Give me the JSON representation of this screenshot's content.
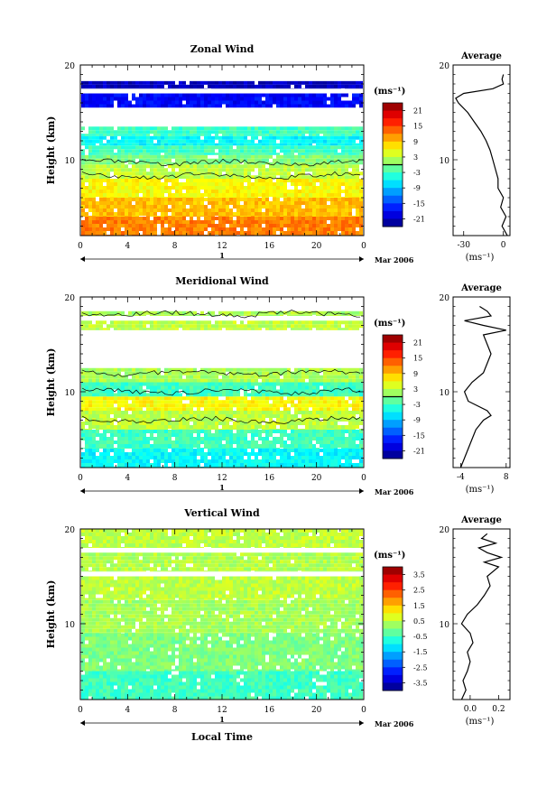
{
  "figure": {
    "xlabel": "Local Time",
    "date_label": "Mar 2006",
    "day_label": "1",
    "colorbar_unit": "(ms⁻¹)",
    "profile_title": "Average",
    "profile_unit": "(ms⁻¹)"
  },
  "chart_data": [
    {
      "type": "heatmap",
      "title": "Zonal Wind",
      "ylabel": "Height (km)",
      "xlabel": "Local Time",
      "x_ticks": [
        "0",
        "4",
        "8",
        "12",
        "16",
        "20",
        "0"
      ],
      "y_ticks": [
        "10",
        "20"
      ],
      "xlim": [
        0,
        24
      ],
      "ylim": [
        2,
        20
      ],
      "colorbar": {
        "ticks": [
          "21",
          "15",
          "9",
          "3",
          "-3",
          "-9",
          "-15",
          "-21"
        ],
        "range": [
          -24,
          24
        ]
      },
      "bands": [
        {
          "y0": 2.0,
          "y1": 4.0,
          "value": 12
        },
        {
          "y0": 4.0,
          "y1": 6.0,
          "value": 9
        },
        {
          "y0": 6.0,
          "y1": 8.0,
          "value": 6
        },
        {
          "y0": 8.0,
          "y1": 9.5,
          "value": 3
        },
        {
          "y0": 9.5,
          "y1": 10.5,
          "value": 0
        },
        {
          "y0": 10.5,
          "y1": 11.5,
          "value": -3
        },
        {
          "y0": 11.5,
          "y1": 12.5,
          "value": -6
        },
        {
          "y0": 12.5,
          "y1": 13.5,
          "value": -3
        },
        {
          "y0": 15.5,
          "y1": 17.0,
          "value": -18
        },
        {
          "y0": 17.5,
          "y1": 18.3,
          "value": -21
        }
      ],
      "profile": {
        "xticks": [
          "-30",
          "0"
        ],
        "xlim": [
          -38,
          5
        ],
        "height": [
          2,
          3,
          4,
          5,
          6,
          7,
          8,
          9,
          10,
          11,
          12,
          13,
          14,
          15,
          16,
          16.5,
          17,
          17.5,
          18,
          18.5,
          19
        ],
        "value": [
          3,
          -1,
          2,
          -2,
          0,
          -4,
          -4,
          -6,
          -8,
          -10,
          -13,
          -17,
          -22,
          -27,
          -34,
          -36,
          -30,
          -8,
          0,
          -1,
          0
        ]
      }
    },
    {
      "type": "heatmap",
      "title": "Meridional Wind",
      "ylabel": "Height (km)",
      "xlabel": "Local Time",
      "x_ticks": [
        "0",
        "4",
        "8",
        "12",
        "16",
        "20",
        "0"
      ],
      "y_ticks": [
        "10",
        "20"
      ],
      "xlim": [
        0,
        24
      ],
      "ylim": [
        2,
        20
      ],
      "colorbar": {
        "ticks": [
          "21",
          "15",
          "9",
          "3",
          "-3",
          "-9",
          "-15",
          "-21"
        ],
        "range": [
          -24,
          24
        ]
      },
      "bands": [
        {
          "y0": 2.0,
          "y1": 4.0,
          "value": -6
        },
        {
          "y0": 4.0,
          "y1": 6.0,
          "value": -3
        },
        {
          "y0": 6.0,
          "y1": 8.0,
          "value": 3
        },
        {
          "y0": 8.0,
          "y1": 9.5,
          "value": 6
        },
        {
          "y0": 9.5,
          "y1": 11.0,
          "value": -3
        },
        {
          "y0": 11.0,
          "y1": 12.5,
          "value": 2
        },
        {
          "y0": 16.5,
          "y1": 17.5,
          "value": 3
        },
        {
          "y0": 18.0,
          "y1": 18.5,
          "value": 2
        }
      ],
      "profile": {
        "xticks": [
          "-4",
          "8"
        ],
        "xlim": [
          -6,
          9
        ],
        "height": [
          2,
          3,
          4,
          5,
          6,
          7,
          7.5,
          8,
          9,
          10,
          11,
          12,
          13,
          14,
          15,
          16,
          16.5,
          17,
          17.5,
          18,
          18.5,
          19
        ],
        "value": [
          -4,
          -3,
          -2,
          -1,
          0,
          2,
          4,
          3,
          -2,
          -3,
          -1,
          2,
          3,
          4,
          3,
          2,
          8,
          2,
          -3,
          4,
          3,
          1
        ]
      }
    },
    {
      "type": "heatmap",
      "title": "Vertical Wind",
      "ylabel": "Height (km)",
      "xlabel": "Local Time",
      "x_ticks": [
        "0",
        "4",
        "8",
        "12",
        "16",
        "20",
        "0"
      ],
      "y_ticks": [
        "10",
        "20"
      ],
      "xlim": [
        0,
        24
      ],
      "ylim": [
        2,
        20
      ],
      "colorbar": {
        "ticks": [
          "3.5",
          "2.5",
          "1.5",
          "0.5",
          "-0.5",
          "-1.5",
          "-2.5",
          "-3.5"
        ],
        "range": [
          -4,
          4
        ]
      },
      "bands": [
        {
          "y0": 2.0,
          "y1": 5.0,
          "value": -0.5
        },
        {
          "y0": 5.0,
          "y1": 9.0,
          "value": 0.0
        },
        {
          "y0": 9.0,
          "y1": 12.5,
          "value": 0.3
        },
        {
          "y0": 12.5,
          "y1": 15.0,
          "value": 0.5
        },
        {
          "y0": 15.5,
          "y1": 17.5,
          "value": 0.4
        },
        {
          "y0": 18.0,
          "y1": 20.0,
          "value": 0.5
        }
      ],
      "profile": {
        "xticks": [
          "0.0",
          "0.2"
        ],
        "xlim": [
          -0.12,
          0.28
        ],
        "height": [
          2,
          3,
          4,
          5,
          6,
          7,
          8,
          9,
          10,
          11,
          12,
          13,
          14,
          15,
          16,
          16.5,
          17,
          17.5,
          18,
          18.5,
          19,
          19.5
        ],
        "value": [
          -0.06,
          -0.03,
          -0.05,
          -0.02,
          0.0,
          -0.02,
          0.02,
          0.0,
          -0.06,
          -0.02,
          0.05,
          0.1,
          0.14,
          0.12,
          0.2,
          0.1,
          0.22,
          0.12,
          0.06,
          0.18,
          0.08,
          0.12
        ]
      }
    }
  ]
}
